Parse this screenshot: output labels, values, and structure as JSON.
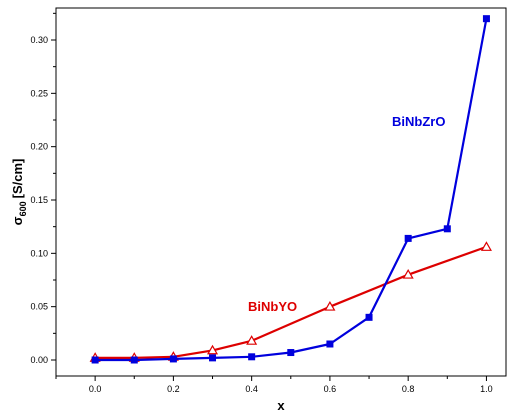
{
  "chart_data": {
    "type": "line",
    "xlabel": "x",
    "ylabel": "σ",
    "ylabel_subscript": "600",
    "ylabel_unit": "[S/cm]",
    "xlim": [
      -0.1,
      1.05
    ],
    "ylim": [
      -0.015,
      0.33
    ],
    "grid": false,
    "x_ticks": [
      0.0,
      0.2,
      0.4,
      0.6,
      0.8,
      1.0
    ],
    "x_tick_labels": [
      "0.0",
      "0.2",
      "0.4",
      "0.6",
      "0.8",
      "1.0"
    ],
    "y_ticks": [
      0.0,
      0.05,
      0.1,
      0.15,
      0.2,
      0.25,
      0.3
    ],
    "y_tick_labels": [
      "0.00",
      "0.05",
      "0.10",
      "0.15",
      "0.20",
      "0.25",
      "0.30"
    ],
    "series": [
      {
        "name": "BiNbZrO",
        "color": "#0000dd",
        "marker": "filled-square",
        "x": [
          0.0,
          0.1,
          0.2,
          0.3,
          0.4,
          0.5,
          0.6,
          0.7,
          0.8,
          0.9,
          1.0
        ],
        "values": [
          0.0,
          0.0,
          0.001,
          0.002,
          0.003,
          0.007,
          0.015,
          0.04,
          0.114,
          0.123,
          0.32
        ]
      },
      {
        "name": "BiNbYO",
        "color": "#dd0000",
        "marker": "open-triangle",
        "x": [
          0.0,
          0.1,
          0.2,
          0.3,
          0.4,
          0.6,
          0.8,
          1.0
        ],
        "values": [
          0.002,
          0.002,
          0.003,
          0.009,
          0.018,
          0.05,
          0.08,
          0.106
        ]
      }
    ]
  }
}
